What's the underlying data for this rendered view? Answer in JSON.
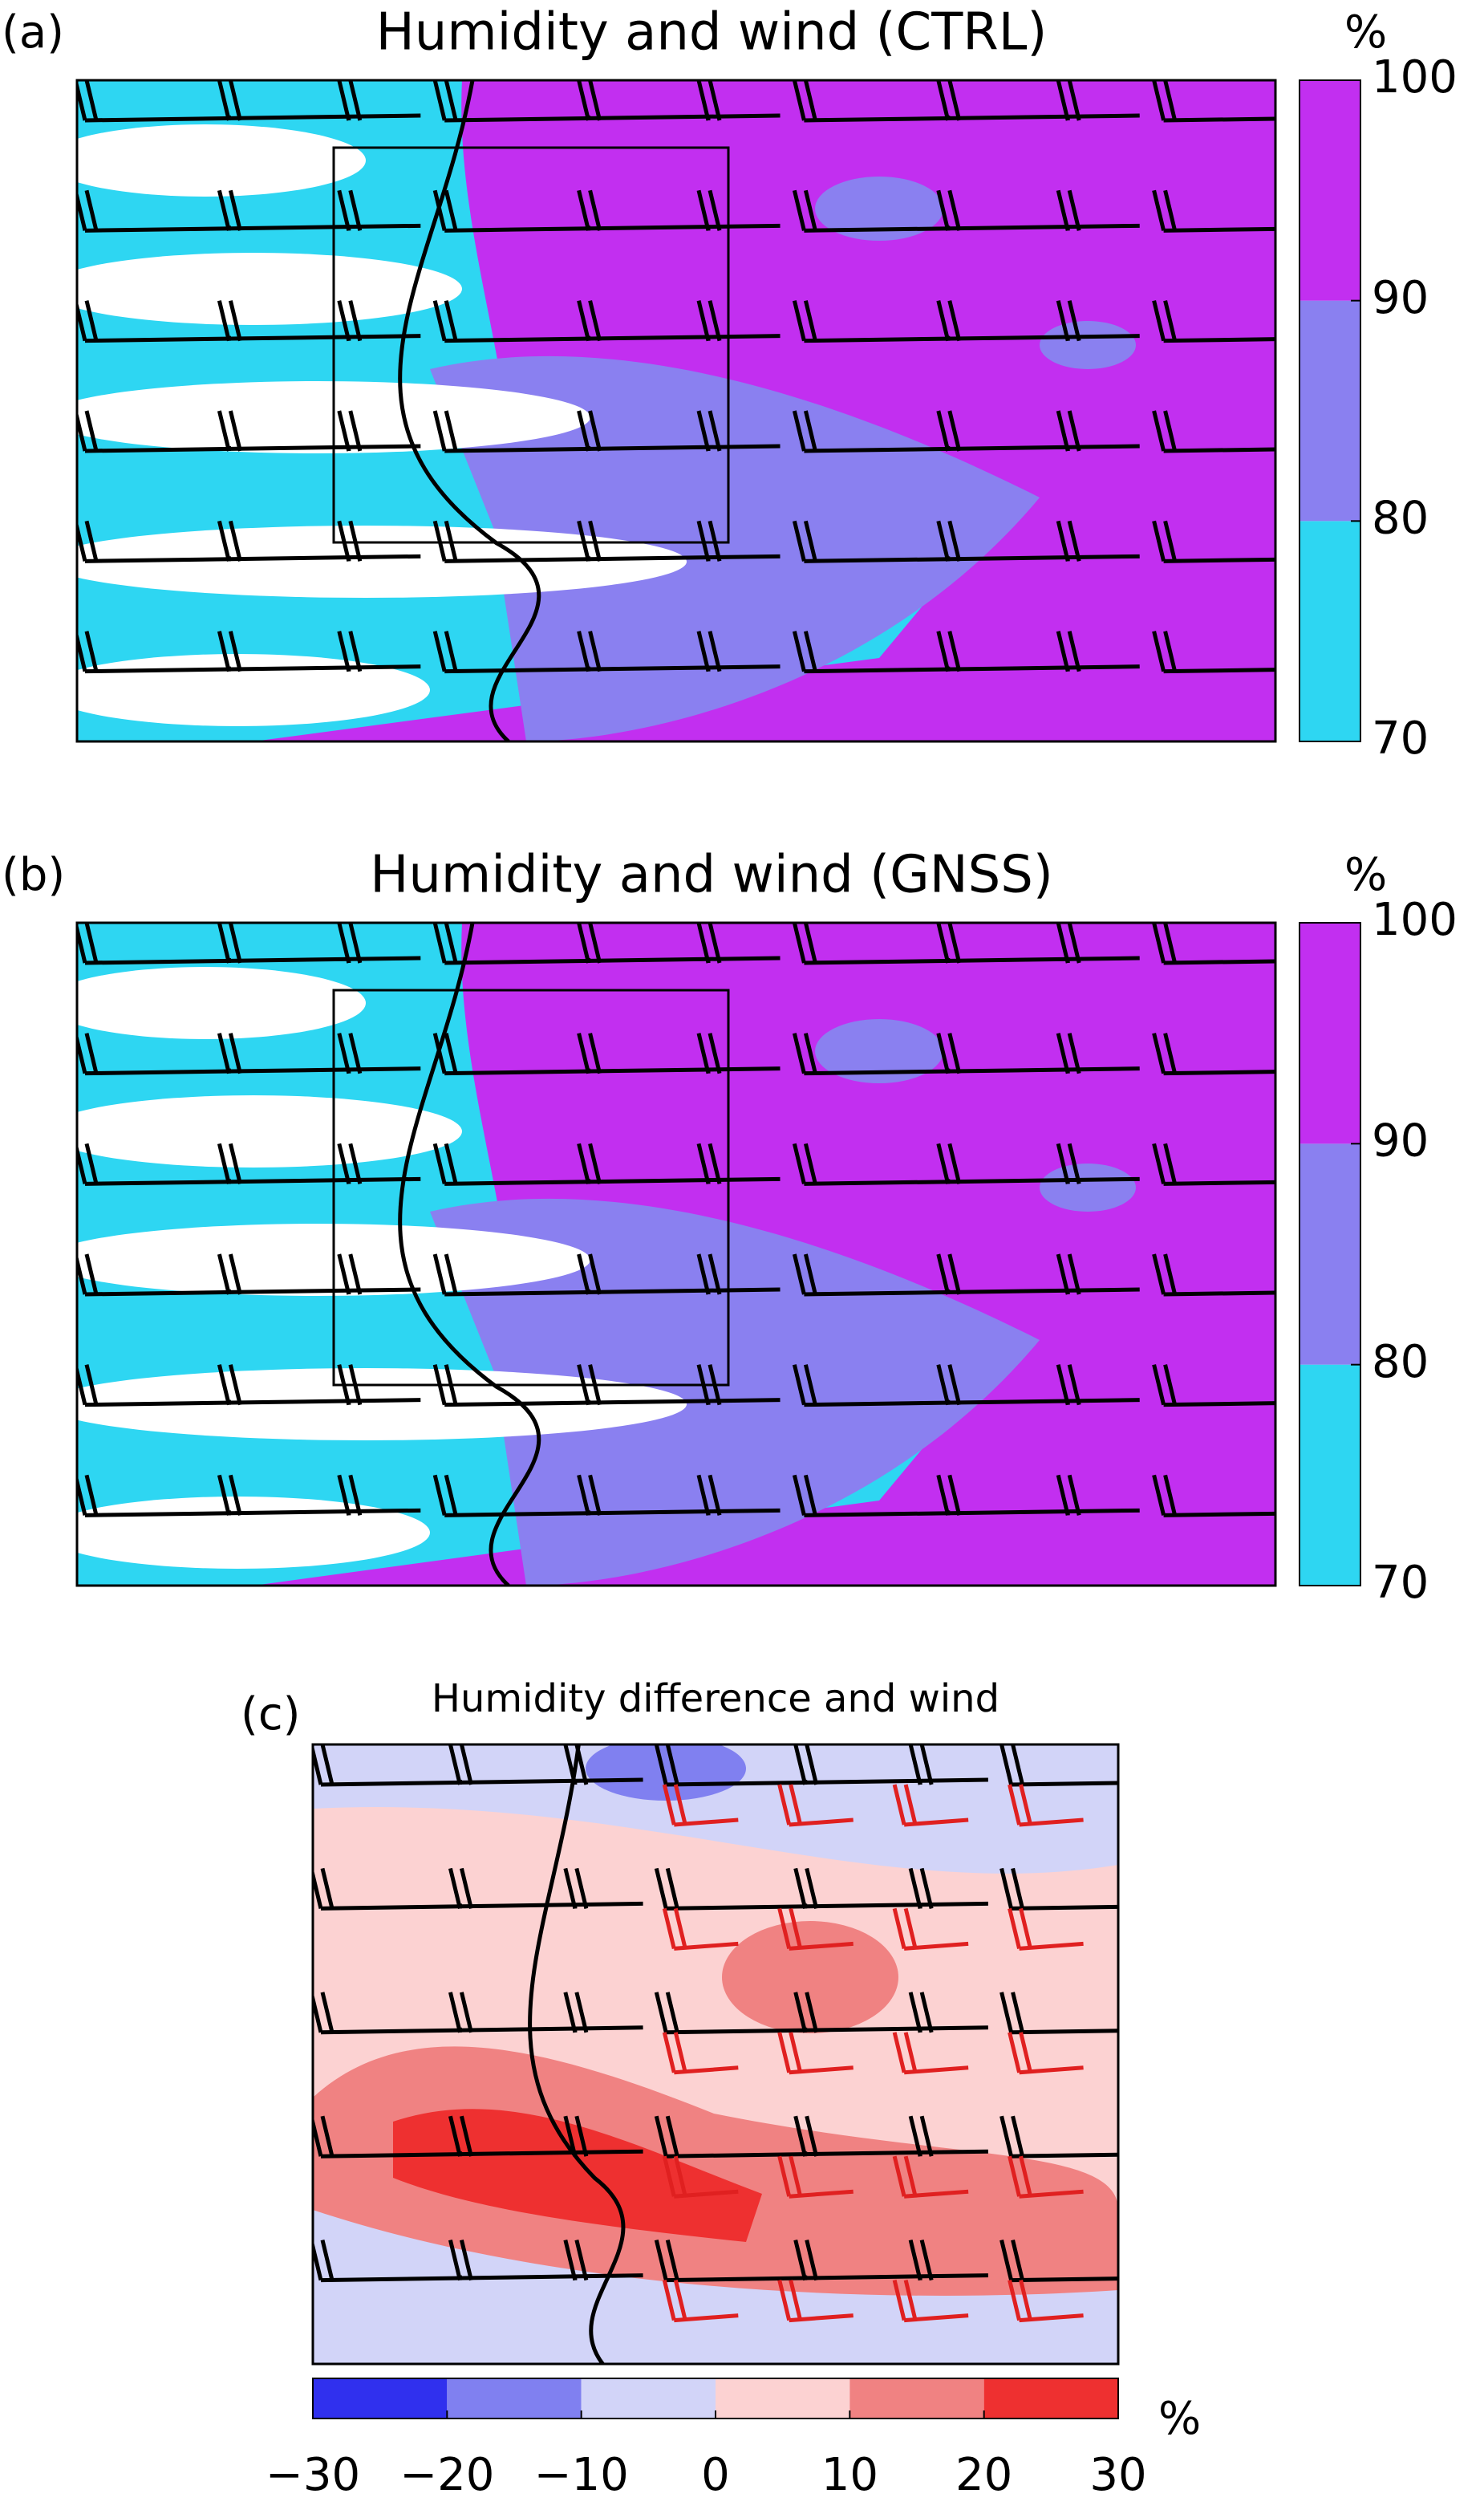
{
  "chart_data": [
    {
      "type": "contour",
      "label": "(a)",
      "title": "Humidity and wind (CTRL)",
      "unit": "%",
      "ylim": [
        70,
        100
      ],
      "yticks": [
        70,
        80,
        90,
        100
      ],
      "colors": [
        "#2ed6f2",
        "#8a80f0",
        "#c22ff0"
      ],
      "colorbar": "right"
    },
    {
      "type": "contour",
      "label": "(b)",
      "title": "Humidity and wind (GNSS)",
      "unit": "%",
      "ylim": [
        70,
        100
      ],
      "yticks": [
        70,
        80,
        90,
        100
      ],
      "colors": [
        "#2ed6f2",
        "#8a80f0",
        "#c22ff0"
      ],
      "colorbar": "right"
    },
    {
      "type": "contour",
      "label": "(c)",
      "title": "Humidity difference and wind",
      "unit": "%",
      "xlim": [
        -30,
        30
      ],
      "xticks": [
        {
          "value": -30,
          "label": "−30"
        },
        {
          "value": -20,
          "label": "−20"
        },
        {
          "value": -10,
          "label": "−10"
        },
        0,
        10,
        20,
        30
      ],
      "colors": [
        "#3030ee",
        "#8080f0",
        "#d2d4f8",
        "#fcd2d2",
        "#f08282",
        "#ee3030"
      ],
      "colorbar": "bottom"
    }
  ]
}
